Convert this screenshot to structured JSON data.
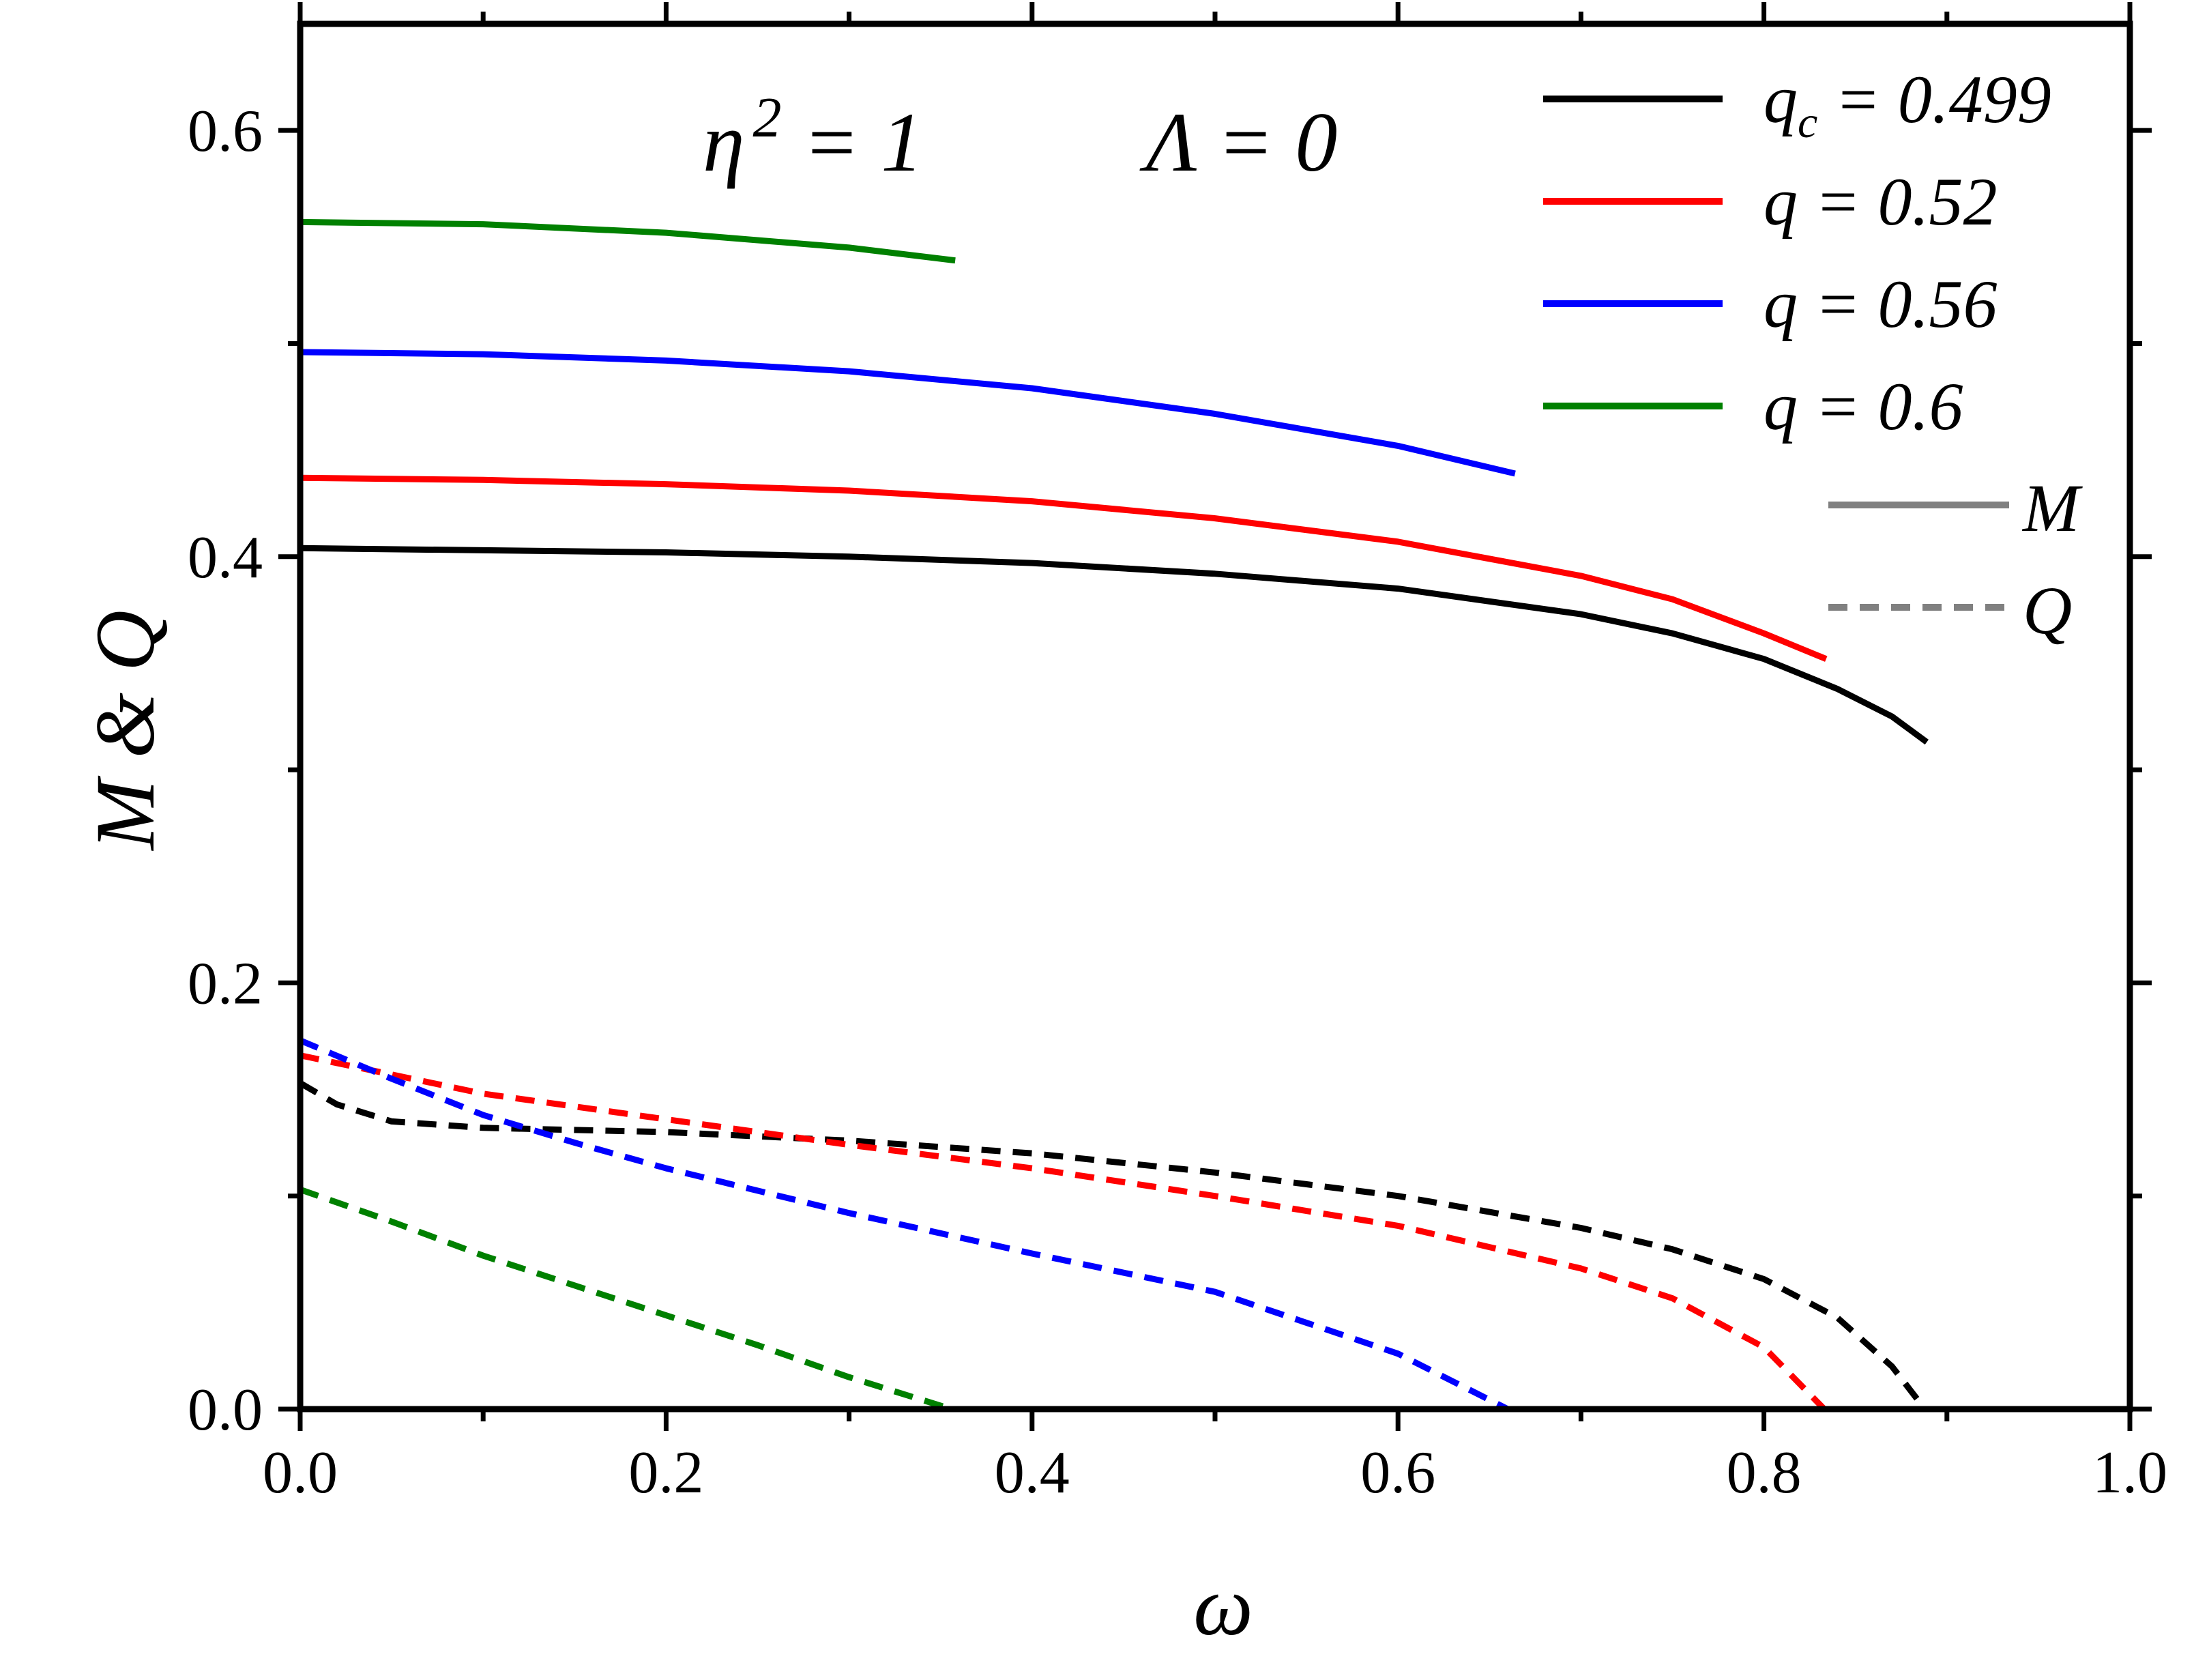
{
  "chart_data": {
    "type": "line",
    "xlabel": "ω",
    "ylabel": "M & Q",
    "xlim": [
      0.0,
      1.0
    ],
    "ylim": [
      0.0,
      0.65
    ],
    "xticks": [
      "0.0",
      "0.2",
      "0.4",
      "0.6",
      "0.8",
      "1.0"
    ],
    "yticks": [
      "0.0",
      "0.2",
      "0.4",
      "0.6"
    ],
    "annotations": {
      "eta_base": "η",
      "eta_exp": "2",
      "eta_rest": " = 1",
      "lambda": "Λ = 0"
    },
    "legend": {
      "position": "top-right",
      "entries": [
        {
          "base": "q",
          "sub": "c",
          "rest": " = 0.499",
          "color": "#000000"
        },
        {
          "base": "q",
          "sub": "",
          "rest": " = 0.52",
          "color": "#ff0000"
        },
        {
          "base": "q",
          "sub": "",
          "rest": " = 0.56",
          "color": "#0000ff"
        },
        {
          "base": "q",
          "sub": "",
          "rest": " = 0.6",
          "color": "#008000"
        }
      ],
      "styles": [
        {
          "label": "M",
          "dash": "solid"
        },
        {
          "label": "Q",
          "dash": "dashed"
        }
      ],
      "style_color": "#808080"
    },
    "series": [
      {
        "name": "q_c = 0.499",
        "quantity": "M",
        "color": "#000000",
        "x": [
          0.0,
          0.1,
          0.2,
          0.3,
          0.4,
          0.5,
          0.6,
          0.7,
          0.75,
          0.8,
          0.84,
          0.87,
          0.889
        ],
        "y": [
          0.404,
          0.403,
          0.402,
          0.4,
          0.397,
          0.392,
          0.385,
          0.373,
          0.364,
          0.352,
          0.338,
          0.325,
          0.313
        ]
      },
      {
        "name": "q = 0.52",
        "quantity": "M",
        "color": "#ff0000",
        "x": [
          0.0,
          0.1,
          0.2,
          0.3,
          0.4,
          0.5,
          0.6,
          0.7,
          0.75,
          0.8,
          0.834
        ],
        "y": [
          0.437,
          0.436,
          0.434,
          0.431,
          0.426,
          0.418,
          0.407,
          0.391,
          0.38,
          0.364,
          0.352
        ]
      },
      {
        "name": "q = 0.56",
        "quantity": "M",
        "color": "#0000ff",
        "x": [
          0.0,
          0.1,
          0.2,
          0.3,
          0.4,
          0.5,
          0.6,
          0.664
        ],
        "y": [
          0.496,
          0.495,
          0.492,
          0.487,
          0.479,
          0.467,
          0.452,
          0.439
        ]
      },
      {
        "name": "q = 0.6",
        "quantity": "M",
        "color": "#008000",
        "x": [
          0.0,
          0.1,
          0.2,
          0.3,
          0.358
        ],
        "y": [
          0.557,
          0.556,
          0.552,
          0.545,
          0.539
        ]
      },
      {
        "name": "q_c = 0.499",
        "quantity": "Q",
        "color": "#000000",
        "x": [
          0.0,
          0.02,
          0.05,
          0.1,
          0.2,
          0.3,
          0.4,
          0.5,
          0.6,
          0.7,
          0.75,
          0.8,
          0.84,
          0.87,
          0.888
        ],
        "y": [
          0.153,
          0.143,
          0.135,
          0.132,
          0.13,
          0.126,
          0.12,
          0.111,
          0.1,
          0.085,
          0.075,
          0.061,
          0.043,
          0.02,
          0.0
        ]
      },
      {
        "name": "q = 0.52",
        "quantity": "Q",
        "color": "#ff0000",
        "x": [
          0.0,
          0.1,
          0.2,
          0.3,
          0.4,
          0.5,
          0.6,
          0.7,
          0.75,
          0.8,
          0.833
        ],
        "y": [
          0.166,
          0.148,
          0.136,
          0.124,
          0.113,
          0.1,
          0.086,
          0.066,
          0.052,
          0.029,
          0.0
        ]
      },
      {
        "name": "q = 0.56",
        "quantity": "Q",
        "color": "#0000ff",
        "x": [
          0.0,
          0.05,
          0.1,
          0.15,
          0.2,
          0.3,
          0.4,
          0.5,
          0.6,
          0.66
        ],
        "y": [
          0.173,
          0.155,
          0.138,
          0.125,
          0.113,
          0.092,
          0.073,
          0.055,
          0.026,
          0.0
        ]
      },
      {
        "name": "q = 0.6",
        "quantity": "Q",
        "color": "#008000",
        "x": [
          0.0,
          0.05,
          0.1,
          0.15,
          0.2,
          0.25,
          0.3,
          0.356
        ],
        "y": [
          0.103,
          0.088,
          0.072,
          0.058,
          0.044,
          0.03,
          0.015,
          0.0
        ]
      }
    ]
  }
}
